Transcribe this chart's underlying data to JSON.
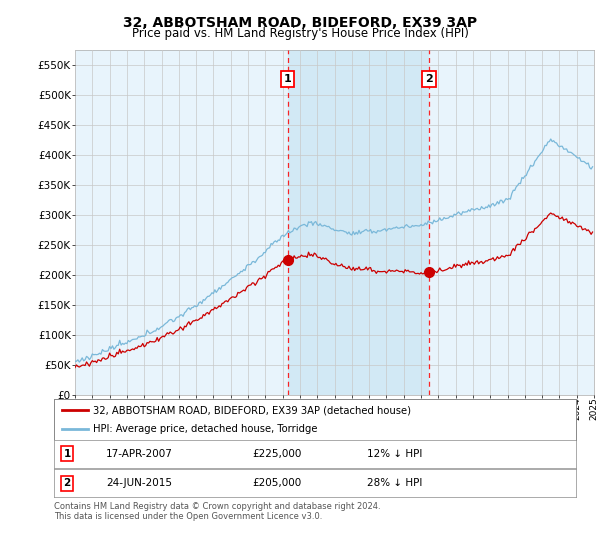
{
  "title": "32, ABBOTSHAM ROAD, BIDEFORD, EX39 3AP",
  "subtitle": "Price paid vs. HM Land Registry's House Price Index (HPI)",
  "ylim": [
    0,
    575000
  ],
  "yticks": [
    0,
    50000,
    100000,
    150000,
    200000,
    250000,
    300000,
    350000,
    400000,
    450000,
    500000,
    550000
  ],
  "ytick_labels": [
    "£0",
    "£50K",
    "£100K",
    "£150K",
    "£200K",
    "£250K",
    "£300K",
    "£350K",
    "£400K",
    "£450K",
    "£500K",
    "£550K"
  ],
  "hpi_color": "#7ab8d9",
  "price_color": "#cc0000",
  "shade_color": "#d0e8f5",
  "marker1_year": 2007.29,
  "marker2_year": 2015.46,
  "marker1_price": 225000,
  "marker2_price": 205000,
  "legend_red": "32, ABBOTSHAM ROAD, BIDEFORD, EX39 3AP (detached house)",
  "legend_blue": "HPI: Average price, detached house, Torridge",
  "table_row1": [
    "1",
    "17-APR-2007",
    "£225,000",
    "12% ↓ HPI"
  ],
  "table_row2": [
    "2",
    "24-JUN-2015",
    "£205,000",
    "28% ↓ HPI"
  ],
  "footnote": "Contains HM Land Registry data © Crown copyright and database right 2024.\nThis data is licensed under the Open Government Licence v3.0.",
  "background_color": "#e8f4fc",
  "plot_bg": "#ffffff",
  "grid_color": "#c8c8c8",
  "title_fontsize": 10,
  "subtitle_fontsize": 8.5
}
